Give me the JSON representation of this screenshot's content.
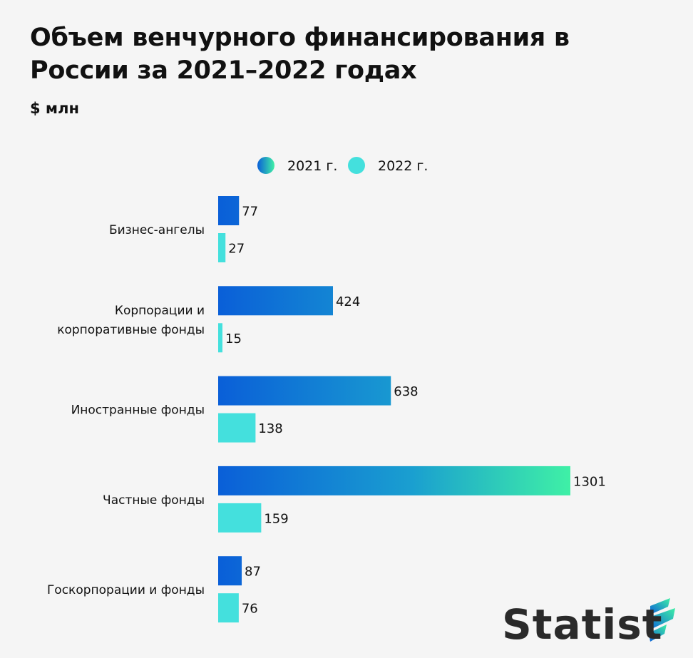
{
  "title": "Объем венчурного финансирования в России за 2021–2022 годах",
  "subtitle": "$ млн",
  "logo": {
    "text": "Statist"
  },
  "colors": {
    "series_2021_start": "#0a5fd8",
    "series_2021_end": "#3ff0a6",
    "series_2022": "#44e0dd",
    "background": "#f5f5f5"
  },
  "chart_data": {
    "type": "bar",
    "orientation": "horizontal",
    "categories": [
      "Бизнес-ангелы",
      "Корпорации и корпоративные фонды",
      "Иностранные фонды",
      "Частные фонды",
      "Госкорпорации и фонды"
    ],
    "category_lines": [
      [
        "Бизнес-ангелы"
      ],
      [
        "Корпорации и",
        "корпоративные фонды"
      ],
      [
        "Иностранные фонды"
      ],
      [
        "Частные фонды"
      ],
      [
        "Госкорпорации и фонды"
      ]
    ],
    "series": [
      {
        "name": "2021 г.",
        "values": [
          77,
          424,
          638,
          1301,
          87
        ]
      },
      {
        "name": "2022 г.",
        "values": [
          27,
          15,
          138,
          159,
          76
        ]
      }
    ],
    "xlim": [
      0,
      1301
    ],
    "grid": false,
    "legend": "top-center",
    "data_labels": true
  }
}
